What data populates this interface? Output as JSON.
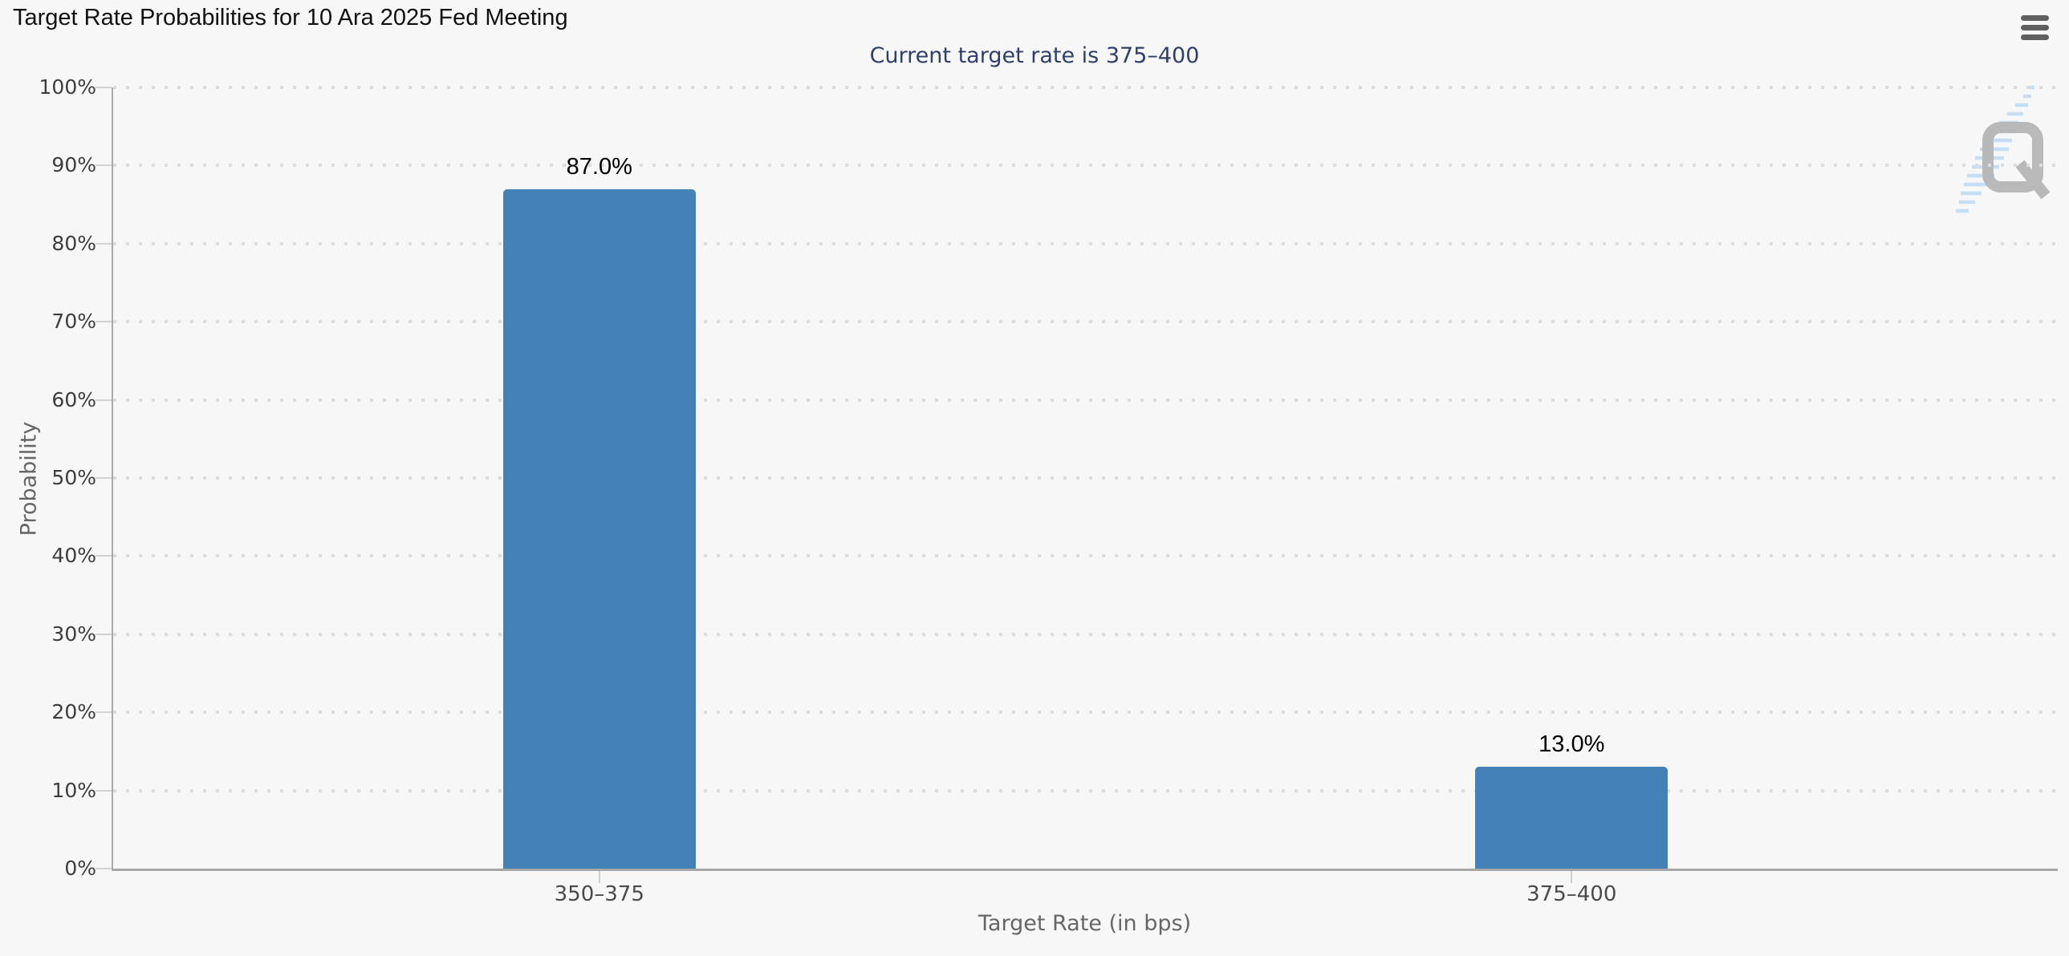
{
  "chart": {
    "title": "Target Rate Probabilities for 10 Ara 2025 Fed Meeting",
    "subtitle": "Current target rate is 375–400",
    "x_axis_title": "Target Rate (in bps)",
    "y_axis_title": "Probability",
    "watermark_letter": "Q",
    "icons": [
      {
        "name": "hamburger-menu-icon"
      },
      {
        "name": "watermark-q-logo"
      }
    ],
    "colors": {
      "background": "#f7f7f7",
      "bar": "#4381b7",
      "title_text": "#111111",
      "subtitle_text": "#2e3f6a",
      "axis_line": "#a8a8a8",
      "grid_dot": "#dcdcdc",
      "y_label_text": "#3d3d3d",
      "x_label_text": "#4a4a4a",
      "axis_title_text": "#666666",
      "data_label_text": "#000000",
      "menu_icon": "#606060",
      "watermark_q": "#b6b6b6",
      "watermark_stripes": "#c3def5"
    }
  },
  "chart_data": {
    "type": "bar",
    "title": "Target Rate Probabilities for 10 Ara 2025 Fed Meeting",
    "subtitle": "Current target rate is 375–400",
    "categories": [
      "350–375",
      "375–400"
    ],
    "values": [
      87.0,
      13.0
    ],
    "data_labels": [
      "87.0%",
      "13.0%"
    ],
    "xlabel": "Target Rate (in bps)",
    "ylabel": "Probability",
    "ylim": [
      0,
      100
    ],
    "ytick_step": 10,
    "ytick_labels": [
      "0%",
      "10%",
      "20%",
      "30%",
      "40%",
      "50%",
      "60%",
      "70%",
      "80%",
      "90%",
      "100%"
    ],
    "grid": "dotted-horizontal",
    "legend_position": "none",
    "bar_color": "#4381b7"
  }
}
